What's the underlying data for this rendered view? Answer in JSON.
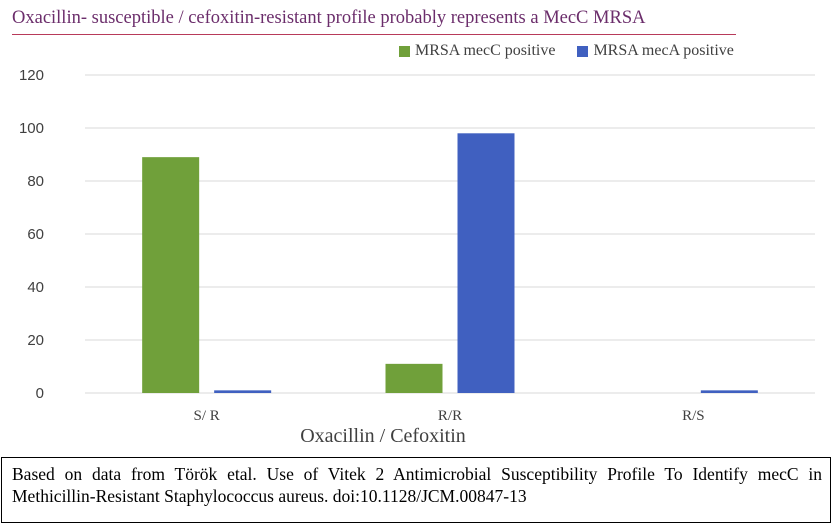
{
  "header": {
    "title": "Oxacillin- susceptible / cefoxitin-resistant profile probably represents a MecC MRSA"
  },
  "colors": {
    "title": "#6b2d6b",
    "underline": "#b83a5a",
    "mecC": "#70a03a",
    "mecA": "#4060c0",
    "grid": "#d9d9d9",
    "text": "#404040"
  },
  "chart_data": {
    "type": "bar",
    "xlabel": "Oxacillin / Cefoxitin",
    "ylabel": "",
    "ylim": [
      0,
      120
    ],
    "yticks": [
      0,
      20,
      40,
      60,
      80,
      100,
      120
    ],
    "categories": [
      "S/ R",
      "R/R",
      "R/S"
    ],
    "series": [
      {
        "name": "MRSA mecC positive",
        "color": "#70a03a",
        "values": [
          89,
          11,
          0
        ]
      },
      {
        "name": "MRSA mecA positive",
        "color": "#4060c0",
        "values": [
          1,
          98,
          1
        ]
      }
    ],
    "grid": true,
    "legend_position": "top-right"
  },
  "footer": {
    "text": "Based on data from Török etal. Use of Vitek 2 Antimicrobial Susceptibility Profile To Identify mecC in Methicillin-Resistant Staphylococcus aureus. doi:10.1128/JCM.00847-13"
  }
}
